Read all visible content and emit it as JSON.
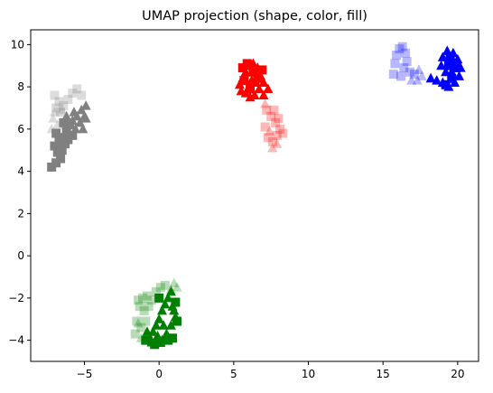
{
  "chart_data": {
    "type": "scatter",
    "title": "UMAP projection (shape, color, fill)",
    "xlabel": "",
    "ylabel": "",
    "xlim": [
      -8.6,
      21.4
    ],
    "ylim": [
      -5.0,
      10.7
    ],
    "xticks": [
      -5,
      0,
      5,
      10,
      15,
      20
    ],
    "yticks": [
      -4,
      -2,
      0,
      2,
      4,
      6,
      8,
      10
    ],
    "xtick_labels": [
      "−5",
      "0",
      "5",
      "10",
      "15",
      "20"
    ],
    "ytick_labels": [
      "−4",
      "−2",
      "0",
      "2",
      "4",
      "6",
      "8",
      "10"
    ],
    "grid": false,
    "legend": "none",
    "series": [
      {
        "color": "#808080",
        "shape": "square",
        "fill": "solid",
        "points": [
          [
            -7.2,
            4.2
          ],
          [
            -6.9,
            4.4
          ],
          [
            -6.6,
            4.6
          ],
          [
            -6.8,
            4.9
          ],
          [
            -7.0,
            5.2
          ],
          [
            -6.5,
            5.0
          ],
          [
            -6.3,
            5.3
          ],
          [
            -6.6,
            5.6
          ],
          [
            -6.9,
            5.8
          ],
          [
            -6.2,
            5.9
          ],
          [
            -6.0,
            6.2
          ],
          [
            -6.4,
            6.3
          ],
          [
            -5.8,
            5.7
          ],
          [
            -6.1,
            5.5
          ],
          [
            -6.7,
            5.4
          ]
        ]
      },
      {
        "color": "#808080",
        "shape": "triangle",
        "fill": "solid",
        "points": [
          [
            -5.8,
            6.4
          ],
          [
            -5.5,
            6.6
          ],
          [
            -5.2,
            6.9
          ],
          [
            -4.9,
            7.1
          ],
          [
            -5.0,
            6.6
          ],
          [
            -5.3,
            6.3
          ],
          [
            -5.6,
            6.0
          ],
          [
            -5.1,
            6.0
          ],
          [
            -4.9,
            6.5
          ],
          [
            -5.7,
            6.8
          ],
          [
            -6.2,
            6.6
          ],
          [
            -5.9,
            6.2
          ]
        ]
      },
      {
        "color": "#808080",
        "shape": "square",
        "fill": "faded",
        "points": [
          [
            -7.0,
            7.6
          ],
          [
            -6.7,
            7.3
          ],
          [
            -6.4,
            7.1
          ],
          [
            -6.1,
            7.4
          ],
          [
            -5.8,
            7.7
          ],
          [
            -5.5,
            7.9
          ],
          [
            -5.2,
            7.6
          ],
          [
            -6.9,
            7.0
          ],
          [
            -6.6,
            6.8
          ]
        ]
      },
      {
        "color": "#808080",
        "shape": "triangle",
        "fill": "faded",
        "points": [
          [
            -7.1,
            6.5
          ],
          [
            -6.8,
            6.2
          ],
          [
            -7.2,
            6.0
          ],
          [
            -6.5,
            6.9
          ],
          [
            -7.0,
            6.8
          ]
        ]
      },
      {
        "color": "#ff0000",
        "shape": "triangle",
        "fill": "solid",
        "points": [
          [
            5.4,
            8.1
          ],
          [
            5.6,
            8.4
          ],
          [
            5.8,
            8.7
          ],
          [
            6.0,
            9.0
          ],
          [
            6.3,
            9.1
          ],
          [
            6.6,
            8.9
          ],
          [
            6.8,
            8.5
          ],
          [
            7.0,
            8.2
          ],
          [
            6.7,
            7.9
          ],
          [
            6.4,
            7.6
          ],
          [
            6.1,
            7.5
          ],
          [
            5.8,
            7.7
          ],
          [
            5.5,
            7.8
          ],
          [
            6.2,
            8.3
          ],
          [
            6.5,
            8.2
          ],
          [
            7.3,
            7.9
          ],
          [
            7.0,
            7.6
          ]
        ]
      },
      {
        "color": "#ff0000",
        "shape": "square",
        "fill": "solid",
        "points": [
          [
            5.6,
            8.9
          ],
          [
            5.9,
            9.1
          ],
          [
            6.3,
            8.7
          ],
          [
            6.6,
            8.4
          ],
          [
            5.7,
            8.3
          ],
          [
            6.9,
            8.8
          ],
          [
            6.1,
            7.9
          ]
        ]
      },
      {
        "color": "#ff0000",
        "shape": "square",
        "fill": "faded",
        "points": [
          [
            7.2,
            6.9
          ],
          [
            7.5,
            6.6
          ],
          [
            7.8,
            6.3
          ],
          [
            8.1,
            6.0
          ],
          [
            8.3,
            5.8
          ],
          [
            7.9,
            5.7
          ],
          [
            7.6,
            5.4
          ],
          [
            7.3,
            5.6
          ],
          [
            7.1,
            6.1
          ],
          [
            7.7,
            6.9
          ],
          [
            8.0,
            6.5
          ]
        ]
      },
      {
        "color": "#ff0000",
        "shape": "triangle",
        "fill": "faded",
        "points": [
          [
            7.6,
            5.1
          ],
          [
            7.9,
            5.3
          ],
          [
            7.4,
            5.9
          ],
          [
            7.1,
            7.2
          ]
        ]
      },
      {
        "color": "#0000ff",
        "shape": "triangle",
        "fill": "solid",
        "points": [
          [
            18.2,
            8.4
          ],
          [
            18.6,
            8.3
          ],
          [
            19.0,
            8.2
          ],
          [
            19.4,
            8.0
          ],
          [
            19.8,
            8.2
          ],
          [
            20.1,
            8.5
          ],
          [
            20.2,
            8.9
          ],
          [
            20.0,
            9.3
          ],
          [
            19.7,
            9.6
          ],
          [
            19.3,
            9.7
          ],
          [
            19.0,
            9.4
          ],
          [
            18.9,
            9.0
          ],
          [
            19.2,
            8.7
          ],
          [
            19.6,
            8.7
          ],
          [
            19.8,
            9.1
          ]
        ]
      },
      {
        "color": "#0000ff",
        "shape": "square",
        "fill": "solid",
        "points": [
          [
            19.5,
            9.4
          ],
          [
            19.9,
            8.9
          ],
          [
            19.6,
            8.4
          ],
          [
            19.2,
            8.1
          ],
          [
            19.4,
            9.0
          ]
        ]
      },
      {
        "color": "#0000ff",
        "shape": "square",
        "fill": "faded",
        "points": [
          [
            15.7,
            8.6
          ],
          [
            15.8,
            9.1
          ],
          [
            15.9,
            9.5
          ],
          [
            16.1,
            9.8
          ],
          [
            16.3,
            9.9
          ],
          [
            16.5,
            9.6
          ],
          [
            16.6,
            9.2
          ],
          [
            16.4,
            8.9
          ],
          [
            16.2,
            8.5
          ],
          [
            16.8,
            8.7
          ],
          [
            17.1,
            8.6
          ]
        ]
      },
      {
        "color": "#0000ff",
        "shape": "triangle",
        "fill": "faded",
        "points": [
          [
            17.3,
            8.3
          ],
          [
            17.6,
            8.5
          ],
          [
            16.9,
            8.3
          ],
          [
            17.4,
            8.8
          ]
        ]
      },
      {
        "color": "#008000",
        "shape": "triangle",
        "fill": "solid",
        "points": [
          [
            -0.6,
            -3.9
          ],
          [
            -0.4,
            -3.6
          ],
          [
            -0.2,
            -3.3
          ],
          [
            0.0,
            -3.0
          ],
          [
            0.2,
            -2.6
          ],
          [
            0.4,
            -2.3
          ],
          [
            0.6,
            -2.0
          ],
          [
            0.8,
            -1.7
          ],
          [
            0.9,
            -2.4
          ],
          [
            1.1,
            -2.9
          ],
          [
            0.8,
            -3.3
          ],
          [
            0.5,
            -3.7
          ],
          [
            0.2,
            -4.0
          ],
          [
            -0.1,
            -3.8
          ],
          [
            -0.5,
            -4.1
          ],
          [
            -0.8,
            -3.6
          ],
          [
            0.3,
            -3.3
          ],
          [
            1.0,
            -2.6
          ]
        ]
      },
      {
        "color": "#008000",
        "shape": "square",
        "fill": "solid",
        "points": [
          [
            -0.9,
            -4.0
          ],
          [
            -0.3,
            -4.2
          ],
          [
            0.1,
            -4.1
          ],
          [
            0.6,
            -4.0
          ],
          [
            0.9,
            -3.9
          ],
          [
            1.2,
            -3.1
          ],
          [
            1.1,
            -2.2
          ],
          [
            0.0,
            -2.0
          ]
        ]
      },
      {
        "color": "#008000",
        "shape": "square",
        "fill": "faded",
        "points": [
          [
            -1.4,
            -2.1
          ],
          [
            -1.1,
            -2.0
          ],
          [
            -0.8,
            -1.9
          ],
          [
            -0.5,
            -2.1
          ],
          [
            -0.2,
            -1.7
          ],
          [
            0.1,
            -1.5
          ],
          [
            0.4,
            -1.4
          ],
          [
            -1.3,
            -2.4
          ],
          [
            -1.0,
            -2.6
          ],
          [
            -0.7,
            -2.4
          ],
          [
            -1.5,
            -3.1
          ],
          [
            -1.2,
            -3.4
          ],
          [
            -1.6,
            -3.7
          ],
          [
            -0.9,
            -3.1
          ]
        ]
      },
      {
        "color": "#008000",
        "shape": "triangle",
        "fill": "faded",
        "points": [
          [
            1.0,
            -1.3
          ],
          [
            1.2,
            -1.5
          ],
          [
            -1.2,
            -3.9
          ],
          [
            -1.4,
            -3.2
          ],
          [
            0.8,
            -1.6
          ]
        ]
      }
    ]
  }
}
